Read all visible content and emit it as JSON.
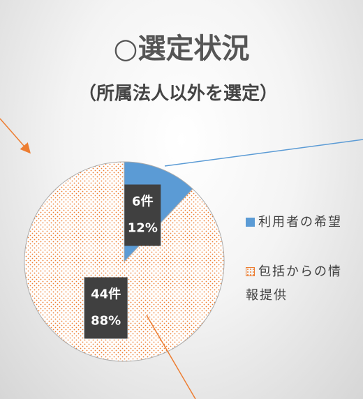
{
  "chart_data": {
    "type": "pie",
    "title": "○選定状況",
    "subtitle": "（所属法人以外を選定）",
    "categories": [
      "利用者の希望",
      "包括からの情報提供"
    ],
    "values": [
      6,
      44
    ],
    "value_labels": [
      "6件",
      "44件"
    ],
    "percents": [
      12,
      88
    ],
    "percent_labels": [
      "12%",
      "88%"
    ],
    "colors": [
      "#5b9bd5",
      "#ed7d31"
    ]
  }
}
